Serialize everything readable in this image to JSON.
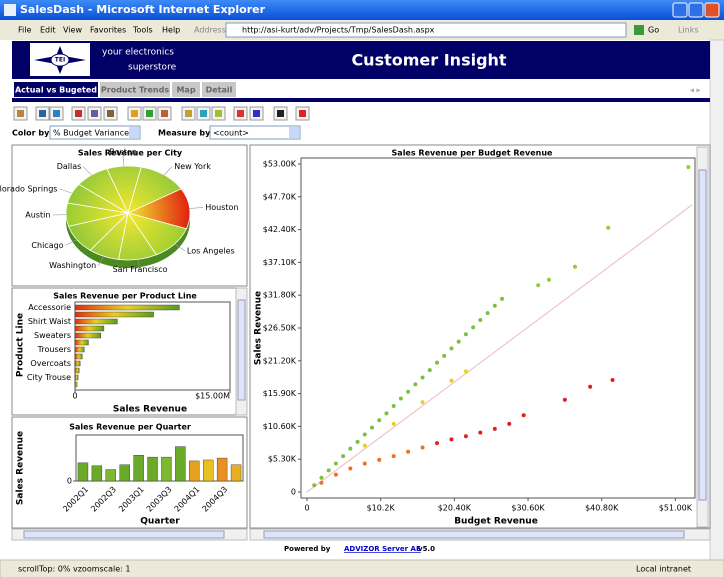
{
  "window": {
    "title": "SalesDash - Microsoft Internet Explorer",
    "menu": [
      "File",
      "Edit",
      "View",
      "Favorites",
      "Tools",
      "Help"
    ],
    "address_label": "Address",
    "url": "http://asi-kurt/adv/Projects/Tmp/SalesDash.aspx",
    "go": "Go",
    "links": "Links"
  },
  "header": {
    "logo": "TEI",
    "tagline_1": "your electronics",
    "tagline_2": "superstore",
    "title": "Customer Insight"
  },
  "tabs": [
    "Actual vs Bugeted",
    "Product Trends",
    "Map",
    "Detail"
  ],
  "controls": {
    "color_by_label": "Color by:",
    "color_by_value": "% Budget Variance",
    "measure_by_label": "Measure by:",
    "measure_by_value": "<count>"
  },
  "city_chart": {
    "type": "pie",
    "title": "Sales Revenue per City",
    "categories": [
      "Boston",
      "New York",
      "Houston",
      "Los Angeles",
      "San Francisco",
      "Washington",
      "Chicago",
      "Austin",
      "Colorado Springs",
      "Dallas"
    ],
    "values": [
      9,
      13,
      14,
      12,
      10,
      8,
      10,
      8,
      7,
      9
    ],
    "colors": [
      "#8cc63a",
      "#8cc63a",
      "#e02010",
      "#9acd32",
      "#8cc63a",
      "#8cc63a",
      "#8cc63a",
      "#9acd32",
      "#8cc63a",
      "#8cc63a"
    ]
  },
  "product_chart": {
    "type": "hbar",
    "title": "Sales Revenue per Product Line",
    "x_label": "Sales Revenue",
    "y_label": "Product Line",
    "categories": [
      "Accessorie",
      null,
      "Shirt Waist",
      null,
      "Sweaters",
      null,
      "Trousers",
      null,
      "Overcoats",
      null,
      "City Trouse",
      null
    ],
    "values": [
      10100000,
      7600000,
      4100000,
      2800000,
      2500000,
      1300000,
      900000,
      700000,
      500000,
      400000,
      300000,
      200000
    ],
    "gradient": [
      "#e03010",
      "#e8d020",
      "#5a9a20"
    ],
    "xlim": [
      0,
      15000000
    ],
    "xticks": [
      0,
      {
        "value": 15000000,
        "label": "$15.00M"
      }
    ]
  },
  "quarter_chart": {
    "type": "bar",
    "title": "Sales Revenue per Quarter",
    "x_label": "Quarter",
    "y_label": "Sales Revenue",
    "categories": [
      "2002Q1",
      null,
      "2002Q3",
      null,
      "2003Q1",
      null,
      "2003Q3",
      null,
      "2004Q1",
      null,
      "2004Q3",
      null
    ],
    "values": [
      19,
      16,
      12,
      17,
      27,
      25,
      25,
      36,
      21,
      22,
      24,
      17
    ],
    "colors": [
      "#6aaa28",
      "#6aaa28",
      "#7cb830",
      "#6aaa28",
      "#6aaa28",
      "#6aaa28",
      "#7cb830",
      "#6aaa28",
      "#e8a020",
      "#e8c020",
      "#e89020",
      "#e8b020"
    ],
    "ylim": [
      0,
      45
    ],
    "yticks": [
      0
    ]
  },
  "scatter_chart": {
    "type": "scatter",
    "title": "Sales Revenue per Budget Revenue",
    "x_label": "Budget Revenue",
    "y_label": "Sales Revenue",
    "xlim": [
      0,
      53300
    ],
    "ylim": [
      0,
      53000
    ],
    "xticks": [
      0,
      {
        "value": 10200,
        "label": "$10.2K"
      },
      {
        "value": 20400,
        "label": "$20.40K"
      },
      {
        "value": 30600,
        "label": "$30.60K"
      },
      {
        "value": 40800,
        "label": "$40.80K"
      },
      {
        "value": 51000,
        "label": "$51.00K"
      }
    ],
    "yticks": [
      0,
      {
        "value": 5300,
        "label": "$5.30K"
      },
      {
        "value": 10600,
        "label": "$10.60K"
      },
      {
        "value": 15900,
        "label": "$15.90K"
      },
      {
        "value": 21200,
        "label": "$21.20K"
      },
      {
        "value": 26500,
        "label": "$26.50K"
      },
      {
        "value": 31800,
        "label": "$31.80K"
      },
      {
        "value": 37100,
        "label": "$37.10K"
      },
      {
        "value": 42400,
        "label": "$42.40K"
      },
      {
        "value": 47700,
        "label": "$47.70K"
      },
      {
        "value": 53000,
        "label": "$53.00K"
      }
    ],
    "points": {
      "x": [
        1000,
        2000,
        3000,
        4000,
        5000,
        6000,
        7000,
        8000,
        9000,
        10000,
        11000,
        12000,
        13000,
        14000,
        15000,
        16000,
        17000,
        18000,
        19000,
        20000,
        21000,
        22000,
        23000,
        24000,
        25000,
        26000,
        27000,
        32000,
        33500,
        37100,
        41700,
        52800,
        8000,
        12000,
        16000,
        20000,
        22000,
        2000,
        4000,
        6000,
        8000,
        10000,
        12000,
        14000,
        16000,
        18000,
        20000,
        22000,
        24000,
        26000,
        28000,
        30000,
        35700,
        39200,
        42300
      ],
      "y": [
        1100,
        2300,
        3500,
        4600,
        5800,
        7000,
        8100,
        9300,
        10400,
        11600,
        12700,
        13900,
        15100,
        16200,
        17400,
        18500,
        19700,
        20900,
        22000,
        23200,
        24300,
        25500,
        26600,
        27800,
        28900,
        30100,
        31200,
        33400,
        34300,
        36400,
        42700,
        52500,
        7500,
        11000,
        14500,
        18000,
        19500,
        1500,
        2800,
        3800,
        4600,
        5200,
        5800,
        6500,
        7200,
        7900,
        8500,
        9000,
        9600,
        10200,
        11000,
        12400,
        14900,
        17000,
        18100
      ],
      "colors": [
        "#7cc040",
        "#7cc040",
        "#7cc040",
        "#7cc040",
        "#7cc040",
        "#7cc040",
        "#7cc040",
        "#7cc040",
        "#7cc040",
        "#7cc040",
        "#7cc040",
        "#7cc040",
        "#7cc040",
        "#7cc040",
        "#7cc040",
        "#7cc040",
        "#7cc040",
        "#7cc040",
        "#7cc040",
        "#7cc040",
        "#7cc040",
        "#7cc040",
        "#7cc040",
        "#7cc040",
        "#7cc040",
        "#7cc040",
        "#7cc040",
        "#8ccf30",
        "#8ccf30",
        "#8ccf30",
        "#8ccf30",
        "#8ccf30",
        "#e8d020",
        "#e8d020",
        "#e8d020",
        "#e8d020",
        "#e8d020",
        "#f07020",
        "#f07020",
        "#f07020",
        "#f07020",
        "#f07020",
        "#f07020",
        "#f07020",
        "#f07020",
        "#e02020",
        "#e02020",
        "#e02020",
        "#e02020",
        "#e02020",
        "#e02020",
        "#e02020",
        "#e02020",
        "#e02020",
        "#e02020"
      ]
    },
    "trend": {
      "x": [
        0,
        53300
      ],
      "y": [
        0,
        46400
      ],
      "color": "#f0c4c4"
    }
  },
  "footer": {
    "powered_by": "Powered by",
    "product": "ADVIZOR Server AE",
    "version": "v5.0"
  },
  "status": {
    "text": "scrollTop: 0% vzoomscale: 1",
    "zone": "Local intranet"
  }
}
